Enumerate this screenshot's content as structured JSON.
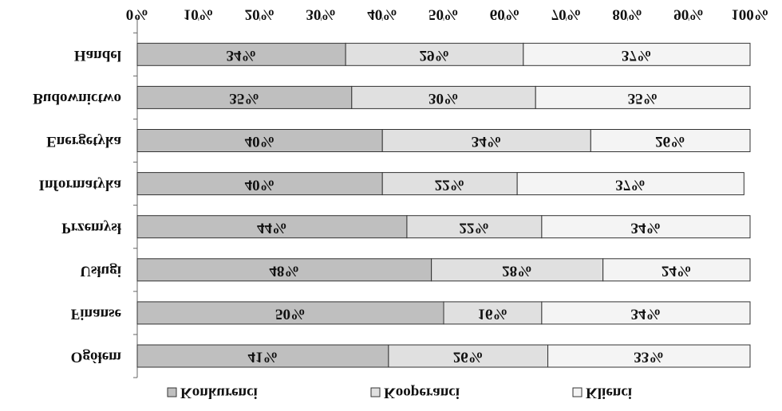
{
  "chart_data": {
    "type": "stacked-bar-horizontal",
    "categories": [
      "Ogółem",
      "Finanse",
      "Usługi",
      "Przemysł",
      "Informatyka",
      "Energetyka",
      "Budownictwo",
      "Handel"
    ],
    "series": [
      {
        "name": "Konkurenci",
        "color": "#bfbfbf",
        "values": [
          41,
          50,
          48,
          44,
          40,
          40,
          35,
          34
        ],
        "value_labels": [
          "41%",
          "50%",
          "48%",
          "44%",
          "40%",
          "40%",
          "35%",
          "34%"
        ]
      },
      {
        "name": "Kooperanci",
        "color": "#e0e0e0",
        "values": [
          26,
          16,
          28,
          22,
          22,
          34,
          30,
          29
        ],
        "value_labels": [
          "26%",
          "16%",
          "28%",
          "22%",
          "22%",
          "34%",
          "30%",
          "29%"
        ]
      },
      {
        "name": "Klienci",
        "color": "#f4f4f4",
        "values": [
          33,
          34,
          24,
          34,
          37,
          26,
          35,
          37
        ],
        "value_labels": [
          "33%",
          "34%",
          "24%",
          "34%",
          "37%",
          "26%",
          "35%",
          "37%"
        ]
      }
    ],
    "xlim": [
      0,
      100
    ],
    "xticks": [
      {
        "value": 0,
        "label": "0%"
      },
      {
        "value": 10,
        "label": "10%"
      },
      {
        "value": 20,
        "label": "20%"
      },
      {
        "value": 30,
        "label": "30%"
      },
      {
        "value": 40,
        "label": "40%"
      },
      {
        "value": 50,
        "label": "50%"
      },
      {
        "value": 60,
        "label": "60%"
      },
      {
        "value": 70,
        "label": "70%"
      },
      {
        "value": 80,
        "label": "80%"
      },
      {
        "value": 90,
        "label": "90%"
      },
      {
        "value": 100,
        "label": "100%"
      }
    ],
    "legend": "top",
    "flipped_vertically": true
  }
}
